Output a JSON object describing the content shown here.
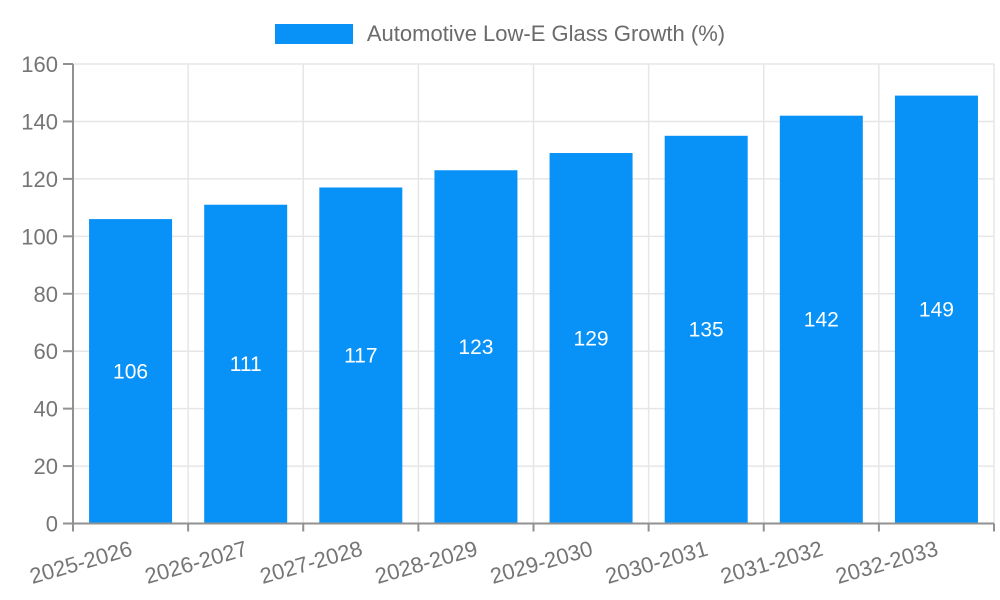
{
  "legend": {
    "label": "Automotive Low-E Glass Growth (%)"
  },
  "chart_data": {
    "type": "bar",
    "title": "Automotive Low-E Glass Growth (%)",
    "categories": [
      "2025-2026",
      "2026-2027",
      "2027-2028",
      "2028-2029",
      "2029-2030",
      "2030-2031",
      "2031-2032",
      "2032-2033"
    ],
    "values": [
      106,
      111,
      117,
      123,
      129,
      135,
      142,
      149
    ],
    "series": [
      {
        "name": "Automotive Low-E Glass Growth (%)",
        "values": [
          106,
          111,
          117,
          123,
          129,
          135,
          142,
          149
        ]
      }
    ],
    "xlabel": "",
    "ylabel": "",
    "ylim": [
      0,
      160
    ],
    "yticks": [
      0,
      20,
      40,
      60,
      80,
      100,
      120,
      140,
      160
    ],
    "grid": true,
    "legend_position": "top",
    "bar_value_labels": true
  },
  "colors": {
    "bar": "#0892f8",
    "grid": "#e6e6e6",
    "axis": "#919191",
    "tick_text": "#757575",
    "legend_text": "#6b6b6b",
    "value_text": "#ffffff",
    "background": "#ffffff"
  }
}
